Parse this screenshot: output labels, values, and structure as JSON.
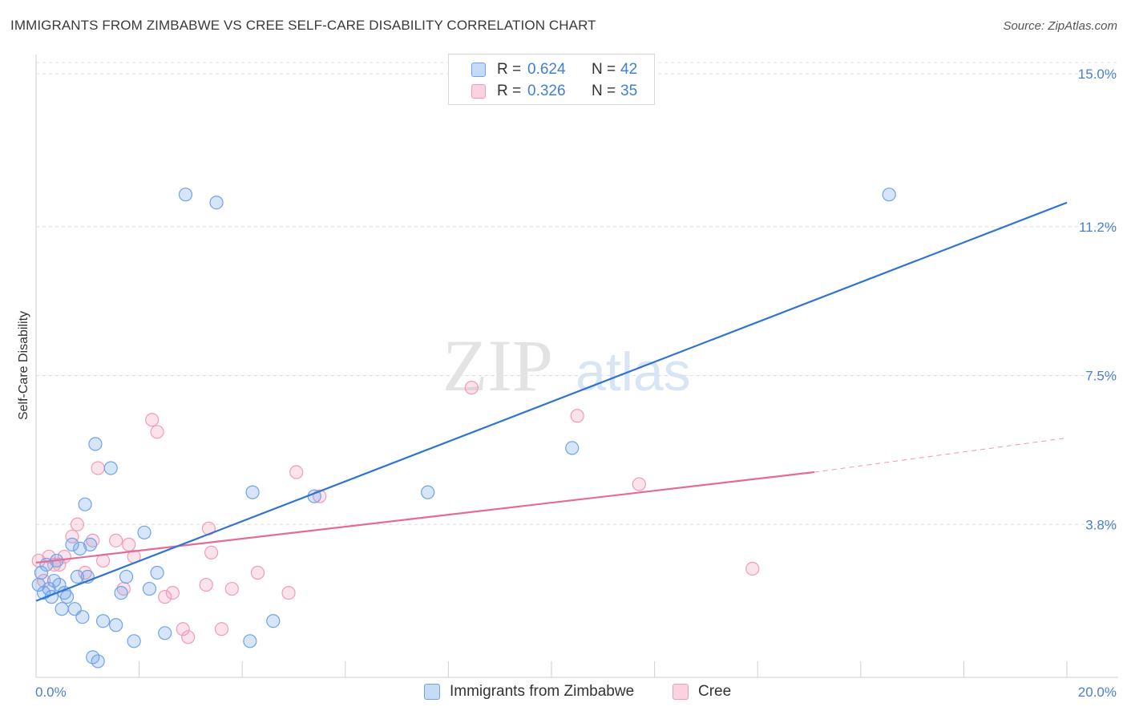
{
  "title": "IMMIGRANTS FROM ZIMBABWE VS CREE SELF-CARE DISABILITY CORRELATION CHART",
  "source": "Source: ZipAtlas.com",
  "watermark": {
    "zip": "ZIP",
    "atlas": "atlas"
  },
  "legend": {
    "rows": [
      {
        "r_label": "R =",
        "r_value": "0.624",
        "n_label": "N =",
        "n_value": "42"
      },
      {
        "r_label": "R =",
        "r_value": "0.326",
        "n_label": "N =",
        "n_value": "35"
      }
    ]
  },
  "bottom_legend": [
    "Immigrants from Zimbabwe",
    "Cree"
  ],
  "chart_data": {
    "type": "scatter",
    "title": "IMMIGRANTS FROM ZIMBABWE VS CREE SELF-CARE DISABILITY CORRELATION CHART",
    "xlabel": "",
    "ylabel": "Self-Care Disability",
    "xlim": [
      0,
      20
    ],
    "ylim": [
      0,
      15.6
    ],
    "x_tick_labels": [
      "0.0%",
      "20.0%"
    ],
    "y_ticks": [
      3.8,
      7.5,
      11.2,
      15.0
    ],
    "y_tick_labels": [
      "3.8%",
      "7.5%",
      "11.2%",
      "15.0%"
    ],
    "colors": {
      "zimbabwe": "#6fa3e8",
      "cree": "#f29bb7",
      "zimbabwe_line": "#2f74d0",
      "cree_line": "#e36b98"
    },
    "series": [
      {
        "name": "Immigrants from Zimbabwe",
        "points": [
          [
            0.05,
            2.3
          ],
          [
            0.1,
            2.6
          ],
          [
            0.15,
            2.1
          ],
          [
            0.2,
            2.8
          ],
          [
            0.25,
            2.2
          ],
          [
            0.3,
            2.0
          ],
          [
            0.35,
            2.4
          ],
          [
            0.4,
            2.9
          ],
          [
            0.45,
            2.3
          ],
          [
            0.5,
            1.7
          ],
          [
            0.55,
            2.1
          ],
          [
            0.6,
            2.0
          ],
          [
            0.7,
            3.3
          ],
          [
            0.75,
            1.7
          ],
          [
            0.8,
            2.5
          ],
          [
            0.85,
            3.2
          ],
          [
            0.9,
            1.5
          ],
          [
            0.95,
            4.3
          ],
          [
            1.0,
            2.5
          ],
          [
            1.05,
            3.3
          ],
          [
            1.1,
            0.5
          ],
          [
            1.15,
            5.8
          ],
          [
            1.2,
            0.4
          ],
          [
            1.3,
            1.4
          ],
          [
            1.45,
            5.2
          ],
          [
            1.55,
            1.3
          ],
          [
            1.65,
            2.1
          ],
          [
            1.75,
            2.5
          ],
          [
            1.9,
            0.9
          ],
          [
            2.1,
            3.6
          ],
          [
            2.2,
            2.2
          ],
          [
            2.35,
            2.6
          ],
          [
            2.5,
            1.1
          ],
          [
            2.9,
            12.0
          ],
          [
            3.5,
            11.8
          ],
          [
            4.15,
            0.9
          ],
          [
            4.2,
            4.6
          ],
          [
            4.6,
            1.4
          ],
          [
            5.4,
            4.5
          ],
          [
            7.6,
            4.6
          ],
          [
            10.4,
            5.7
          ],
          [
            16.55,
            12.0
          ]
        ],
        "trend": {
          "x": [
            0,
            20
          ],
          "y": [
            1.9,
            11.8
          ]
        }
      },
      {
        "name": "Cree",
        "points": [
          [
            0.05,
            2.9
          ],
          [
            0.15,
            2.4
          ],
          [
            0.25,
            3.0
          ],
          [
            0.35,
            2.8
          ],
          [
            0.45,
            2.8
          ],
          [
            0.55,
            3.0
          ],
          [
            0.7,
            3.5
          ],
          [
            0.8,
            3.8
          ],
          [
            0.95,
            2.6
          ],
          [
            1.1,
            3.4
          ],
          [
            1.2,
            5.2
          ],
          [
            1.3,
            2.9
          ],
          [
            1.55,
            3.4
          ],
          [
            1.7,
            2.2
          ],
          [
            1.8,
            3.3
          ],
          [
            1.9,
            3.0
          ],
          [
            2.25,
            6.4
          ],
          [
            2.35,
            6.1
          ],
          [
            2.5,
            2.0
          ],
          [
            2.65,
            2.1
          ],
          [
            2.85,
            1.2
          ],
          [
            2.95,
            1.0
          ],
          [
            3.3,
            2.3
          ],
          [
            3.35,
            3.7
          ],
          [
            3.4,
            3.1
          ],
          [
            3.6,
            1.2
          ],
          [
            3.8,
            2.2
          ],
          [
            4.3,
            2.6
          ],
          [
            4.9,
            2.1
          ],
          [
            5.05,
            5.1
          ],
          [
            5.5,
            4.5
          ],
          [
            8.45,
            7.2
          ],
          [
            10.5,
            6.5
          ],
          [
            11.7,
            4.8
          ],
          [
            13.9,
            2.7
          ]
        ],
        "trend": {
          "x": [
            0,
            15.1
          ],
          "y": [
            2.85,
            5.1
          ]
        },
        "trend_dashed": {
          "x": [
            15.1,
            20
          ],
          "y": [
            5.1,
            5.95
          ]
        }
      }
    ]
  }
}
